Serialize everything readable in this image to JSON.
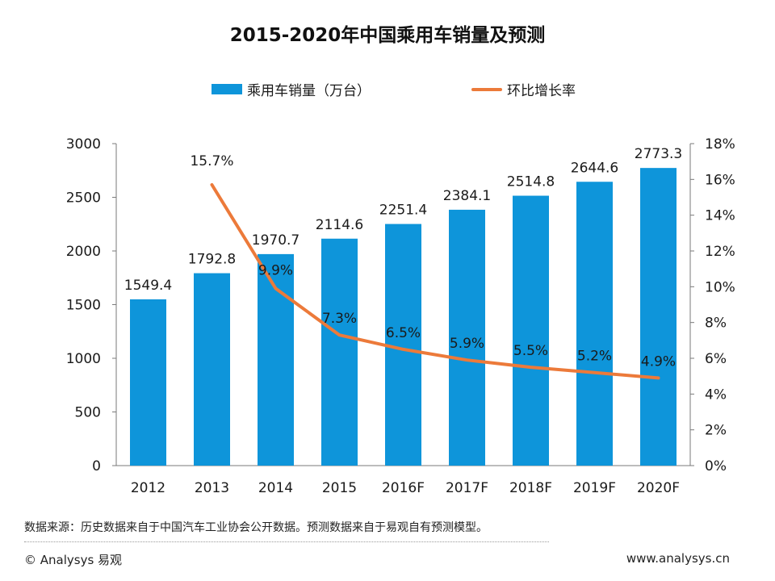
{
  "chart_data": {
    "type": "bar",
    "title": "2015-2020年中国乘用车销量及预测",
    "categories": [
      "2012",
      "2013",
      "2014",
      "2015",
      "2016F",
      "2017F",
      "2018F",
      "2019F",
      "2020F"
    ],
    "bar_series": {
      "name": "乘用车销量（万台）",
      "color": "#0e95da",
      "values": [
        1549.4,
        1792.8,
        1970.7,
        2114.6,
        2251.4,
        2384.1,
        2514.8,
        2644.6,
        2773.3
      ],
      "labels": [
        "1549.4",
        "1792.8",
        "1970.7",
        "2114.6",
        "2251.4",
        "2384.1",
        "2514.8",
        "2644.6",
        "2773.3"
      ]
    },
    "line_series": {
      "name": "环比增长率",
      "color": "#ec7a3a",
      "values": [
        null,
        15.7,
        9.9,
        7.3,
        6.5,
        5.9,
        5.5,
        5.2,
        4.9
      ],
      "labels": [
        "",
        "15.7%",
        "9.9%",
        "7.3%",
        "6.5%",
        "5.9%",
        "5.5%",
        "5.2%",
        "4.9%"
      ]
    },
    "y_left": {
      "range": [
        0,
        3000
      ],
      "ticks": [
        "0",
        "500",
        "1000",
        "1500",
        "2000",
        "2500",
        "3000"
      ]
    },
    "y_right": {
      "range": [
        0,
        18
      ],
      "ticks": [
        "0%",
        "2%",
        "4%",
        "6%",
        "8%",
        "10%",
        "12%",
        "14%",
        "16%",
        "18%"
      ]
    },
    "legend_position": "top",
    "grid": false
  },
  "source_note": "数据来源：历史数据来自于中国汽车工业协会公开数据。预测数据来自于易观自有预测模型。",
  "footer": {
    "copyright": "© Analysys 易观",
    "url": "www.analysys.cn"
  }
}
